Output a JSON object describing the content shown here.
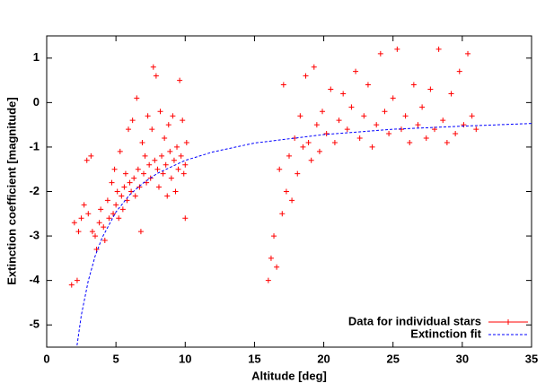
{
  "chart_data": {
    "type": "scatter",
    "xlabel": "Altitude [deg]",
    "ylabel": "Extinction coefficient [magnitude]",
    "xlim": [
      0,
      35
    ],
    "xticks": [
      0,
      5,
      10,
      15,
      20,
      25,
      30,
      35
    ],
    "ylim": [
      -5.5,
      1.5
    ],
    "yticks": [
      -5,
      -4,
      -3,
      -2,
      -1,
      0,
      1
    ],
    "legend": "lower right",
    "series": [
      {
        "name": "Data for individual stars",
        "color": "#ff0000",
        "type": "scatter",
        "x": [
          1.8,
          2.2,
          2.0,
          2.3,
          2.5,
          2.7,
          2.9,
          3.0,
          3.2,
          3.3,
          3.5,
          3.6,
          3.8,
          3.9,
          4.1,
          4.2,
          4.4,
          4.5,
          4.7,
          4.8,
          4.9,
          5.0,
          5.1,
          5.2,
          5.3,
          5.4,
          5.5,
          5.6,
          5.7,
          5.8,
          5.9,
          6.0,
          6.1,
          6.2,
          6.3,
          6.4,
          6.5,
          6.6,
          6.7,
          6.8,
          6.9,
          7.0,
          7.1,
          7.2,
          7.3,
          7.4,
          7.5,
          7.6,
          7.7,
          7.8,
          7.9,
          8.0,
          8.1,
          8.2,
          8.3,
          8.4,
          8.5,
          8.6,
          8.7,
          8.8,
          8.9,
          9.0,
          9.1,
          9.2,
          9.3,
          9.4,
          9.5,
          9.6,
          9.7,
          9.8,
          9.9,
          10.0,
          10.0,
          10.1,
          16.0,
          16.2,
          16.4,
          16.6,
          16.8,
          17.0,
          17.1,
          17.3,
          17.5,
          17.7,
          17.9,
          18.1,
          18.3,
          18.5,
          18.7,
          18.9,
          19.1,
          19.3,
          19.5,
          19.7,
          19.9,
          20.2,
          20.5,
          20.8,
          21.1,
          21.4,
          21.7,
          22.0,
          22.3,
          22.6,
          22.9,
          23.2,
          23.5,
          23.8,
          24.1,
          24.4,
          24.7,
          25.0,
          25.3,
          25.6,
          25.9,
          26.2,
          26.5,
          26.8,
          27.1,
          27.4,
          27.7,
          28.0,
          28.3,
          28.6,
          28.9,
          29.2,
          29.5,
          29.8,
          30.1,
          30.4,
          30.7,
          31.0
        ],
        "values": [
          -4.1,
          -4.0,
          -2.7,
          -2.9,
          -2.6,
          -2.3,
          -1.3,
          -2.5,
          -1.2,
          -2.9,
          -3.0,
          -3.3,
          -2.7,
          -2.4,
          -2.8,
          -3.1,
          -2.2,
          -2.6,
          -1.8,
          -2.5,
          -1.5,
          -2.3,
          -2.0,
          -2.6,
          -1.1,
          -2.1,
          -2.4,
          -1.9,
          -1.6,
          -2.2,
          -0.6,
          -1.8,
          -2.0,
          -0.4,
          -1.7,
          -2.1,
          0.1,
          -1.5,
          -1.9,
          -2.9,
          -0.9,
          -1.6,
          -1.2,
          -1.8,
          -0.3,
          -1.4,
          -1.7,
          -0.6,
          0.8,
          -1.3,
          0.6,
          -1.5,
          -1.9,
          -0.2,
          -1.2,
          -1.6,
          -0.8,
          -1.4,
          -2.1,
          -0.5,
          -1.1,
          -1.7,
          -0.3,
          -1.3,
          -2.0,
          -1.0,
          -1.5,
          0.5,
          -1.2,
          -0.4,
          -1.6,
          -2.6,
          -1.4,
          -0.9,
          -4.0,
          -3.5,
          -3.0,
          -3.7,
          -1.5,
          -2.5,
          0.4,
          -2.0,
          -1.2,
          -2.2,
          -0.8,
          -1.6,
          -0.3,
          -1.0,
          0.6,
          -0.9,
          -1.3,
          0.8,
          -0.5,
          -1.1,
          -0.2,
          -0.7,
          0.3,
          -0.9,
          -0.4,
          0.2,
          -0.6,
          -0.1,
          0.7,
          -0.8,
          -0.3,
          0.4,
          -1.0,
          -0.5,
          1.1,
          -0.2,
          -0.7,
          0.1,
          1.2,
          -0.6,
          -0.3,
          -0.9,
          0.4,
          -0.5,
          -0.1,
          -0.8,
          0.3,
          -0.6,
          1.2,
          -0.4,
          -0.9,
          0.2,
          -0.7,
          0.7,
          -0.5,
          1.1,
          -0.3,
          -0.6
        ]
      },
      {
        "name": "Extinction fit",
        "color": "#0000ff",
        "type": "line",
        "x": [
          2.1,
          2.5,
          3,
          3.5,
          4,
          5,
          6,
          7,
          8,
          10,
          12,
          15,
          20,
          25,
          30,
          35
        ],
        "values": [
          -5.66,
          -4.78,
          -4.01,
          -3.45,
          -3.04,
          -2.46,
          -2.07,
          -1.8,
          -1.59,
          -1.3,
          -1.11,
          -0.91,
          -0.72,
          -0.6,
          -0.53,
          -0.47
        ]
      }
    ]
  }
}
